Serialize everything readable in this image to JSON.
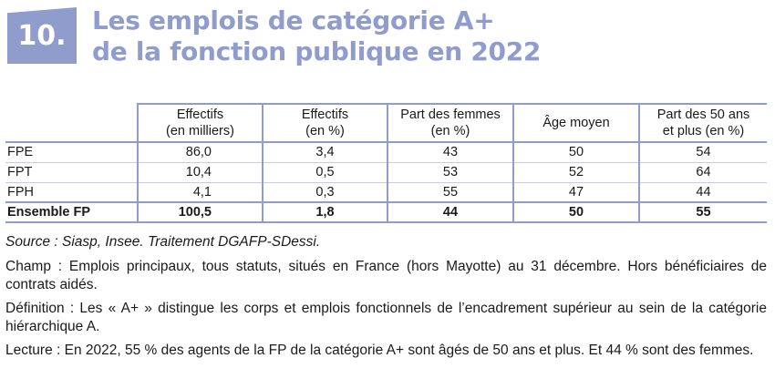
{
  "header": {
    "number": "10.",
    "title_line1": "Les emplois de catégorie A+",
    "title_line2": "de la fonction publique en 2022"
  },
  "table": {
    "columns": [
      {
        "line1": "Effectifs",
        "line2": "(en milliers)"
      },
      {
        "line1": "Effectifs",
        "line2": "(en %)"
      },
      {
        "line1": "Part des femmes",
        "line2": "(en %)"
      },
      {
        "line1": "Âge moyen",
        "line2": ""
      },
      {
        "line1": "Part des 50 ans",
        "line2": "et plus (en %)"
      }
    ],
    "rows": [
      {
        "label": "FPE",
        "values": [
          "86,0",
          "3,4",
          "43",
          "50",
          "54"
        ]
      },
      {
        "label": "FPT",
        "values": [
          "10,4",
          "0,5",
          "53",
          "52",
          "64"
        ]
      },
      {
        "label": "FPH",
        "values": [
          "4,1",
          "0,3",
          "55",
          "47",
          "44"
        ]
      },
      {
        "label": "Ensemble FP",
        "values": [
          "100,5",
          "1,8",
          "44",
          "50",
          "55"
        ]
      }
    ]
  },
  "notes": {
    "source": "Source : Siasp, Insee. Traitement DGAFP-SDessi.",
    "champ": "Champ : Emplois principaux, tous statuts, situés en France (hors Mayotte) au 31 décembre. Hors bénéficiaires de contrats aidés.",
    "definition": "Définition : Les « A+ » distingue les corps et emplois fonctionnels de l’encadrement supérieur au sein de la catégorie hiérarchique A.",
    "lecture": "Lecture : En 2022, 55 % des agents de la FP de la catégorie A+ sont âgés de 50 ans et plus. Et 44 % sont des femmes."
  }
}
